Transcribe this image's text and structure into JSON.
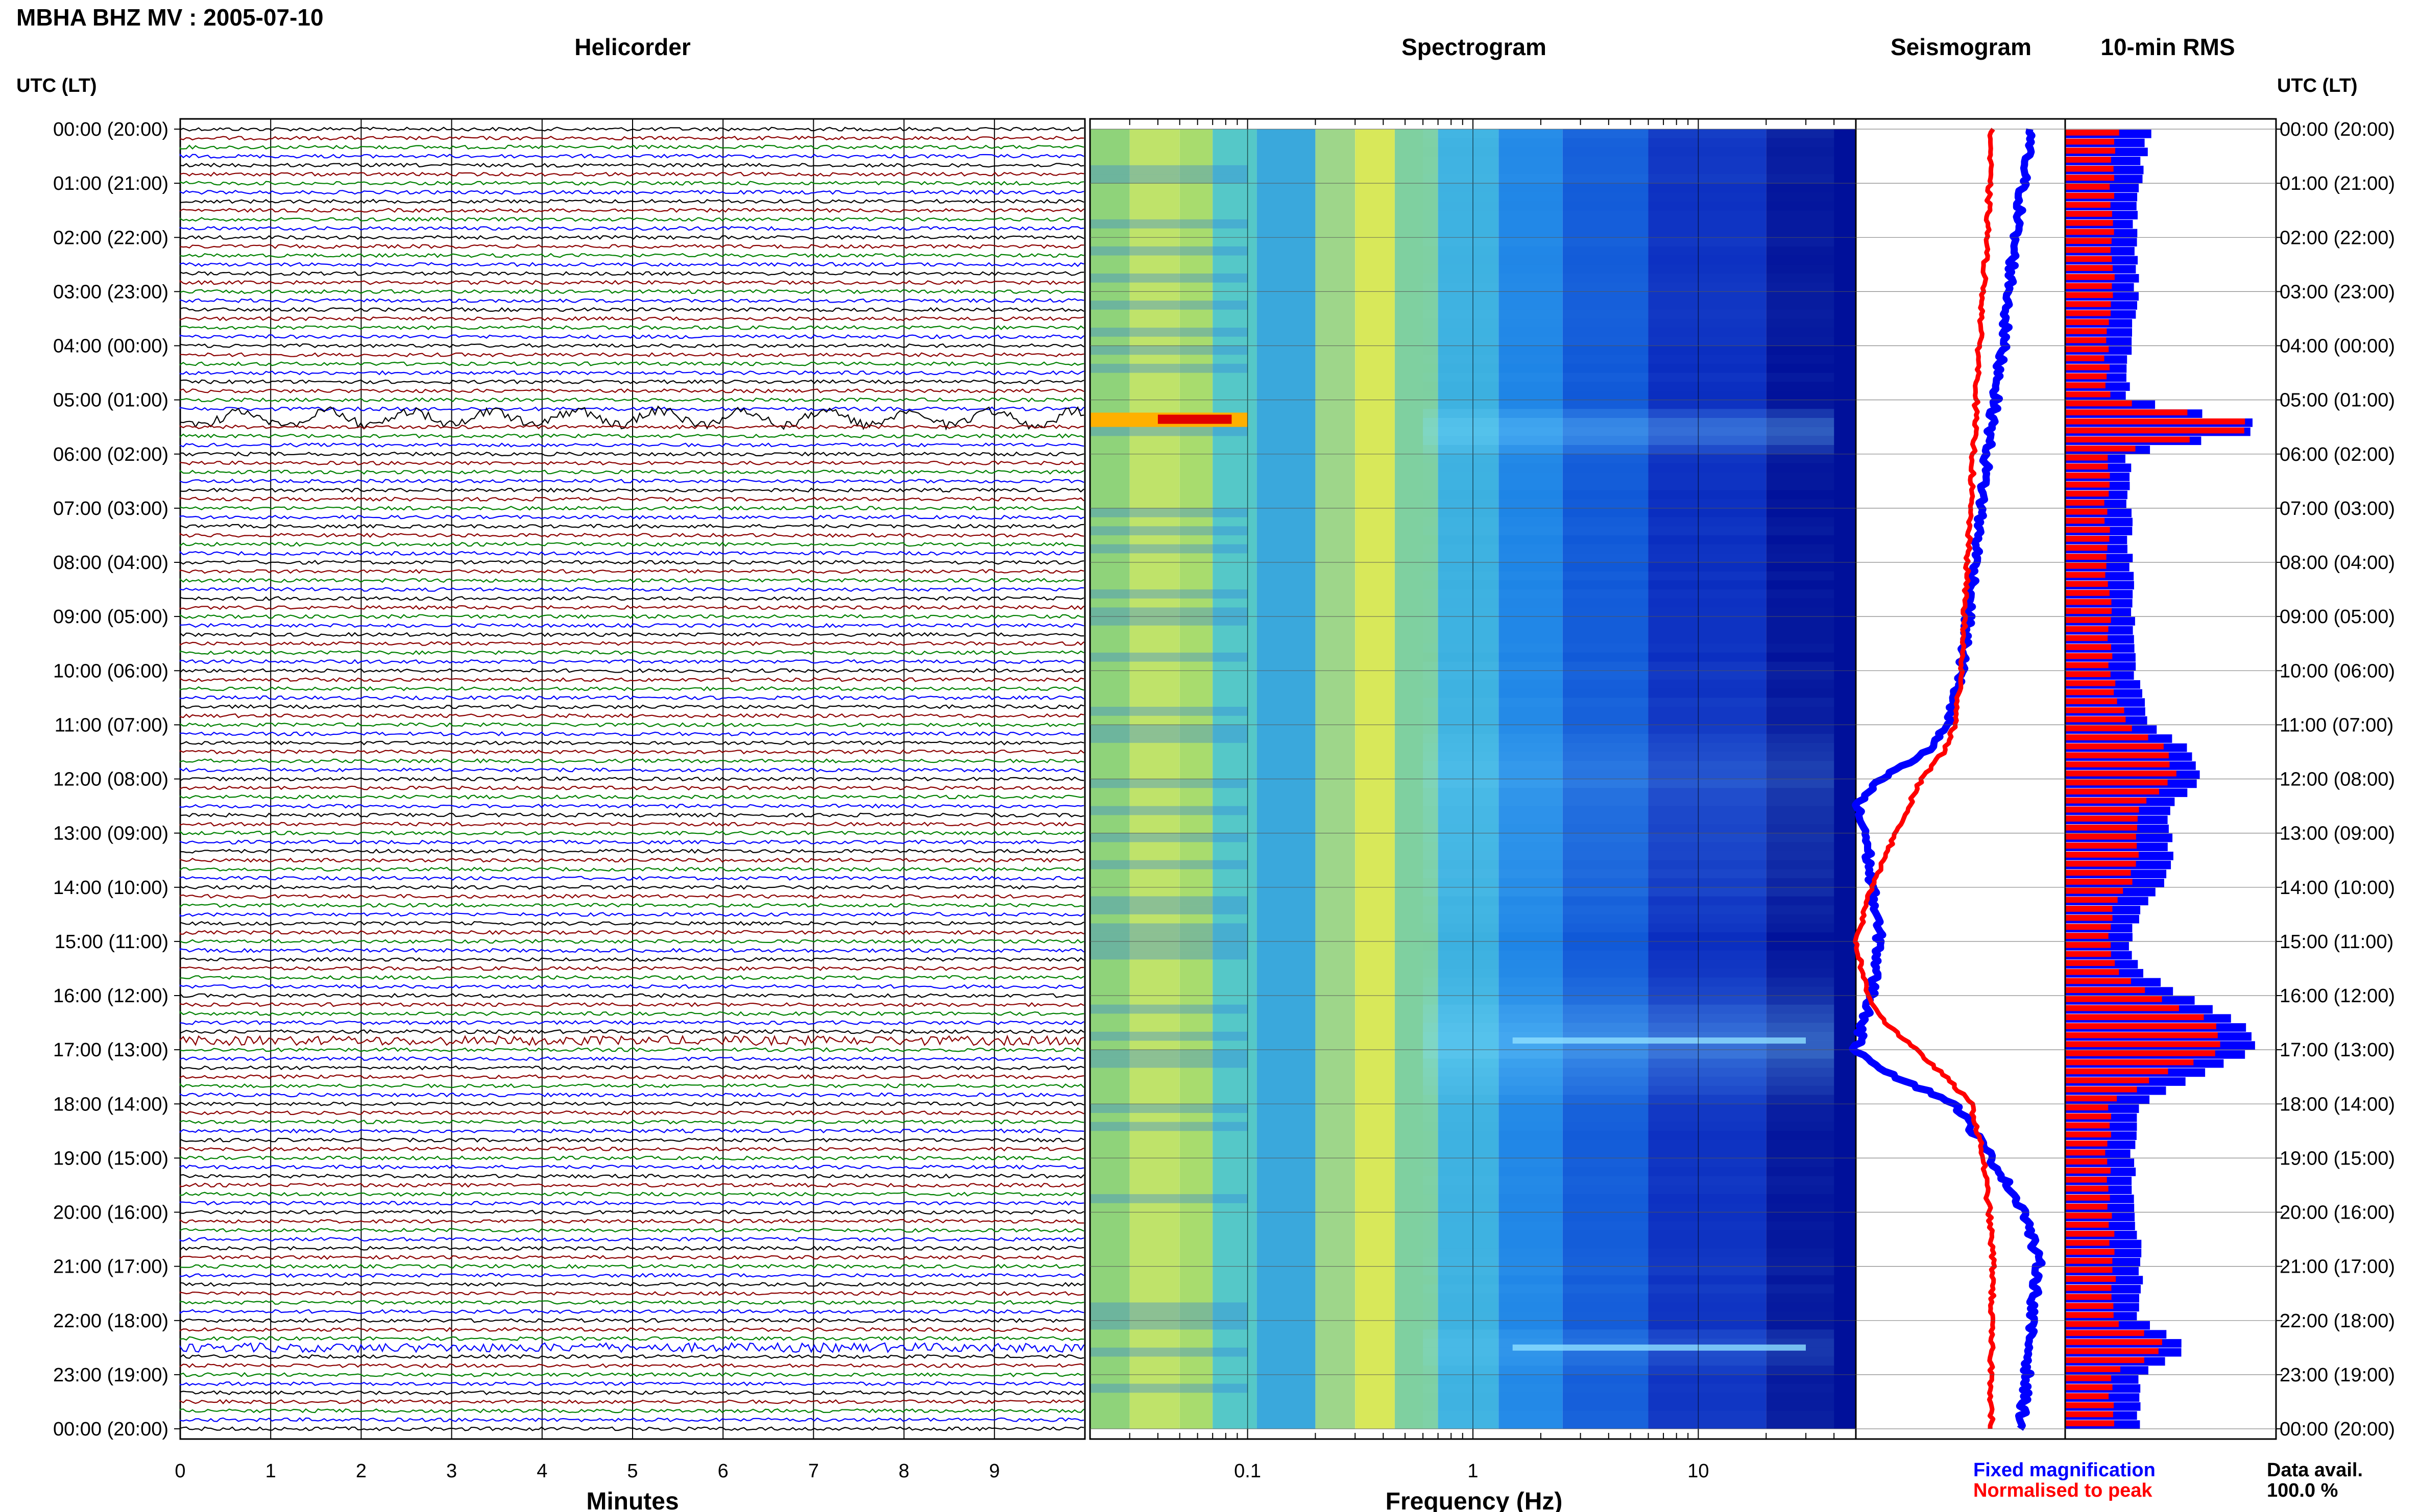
{
  "header": {
    "title": "MBHA BHZ MV : 2005-07-10"
  },
  "panels": {
    "helicorder": "Helicorder",
    "spectrogram": "Spectrogram",
    "seismogram": "Seismogram",
    "rms": "10-min RMS"
  },
  "time_axis": {
    "label": "UTC (LT)",
    "ticks": [
      "00:00 (20:00)",
      "01:00 (21:00)",
      "02:00 (22:00)",
      "03:00 (23:00)",
      "04:00 (00:00)",
      "05:00 (01:00)",
      "06:00 (02:00)",
      "07:00 (03:00)",
      "08:00 (04:00)",
      "09:00 (05:00)",
      "10:00 (06:00)",
      "11:00 (07:00)",
      "12:00 (08:00)",
      "13:00 (09:00)",
      "14:00 (10:00)",
      "15:00 (11:00)",
      "16:00 (12:00)",
      "17:00 (13:00)",
      "18:00 (14:00)",
      "19:00 (15:00)",
      "20:00 (16:00)",
      "21:00 (17:00)",
      "22:00 (18:00)",
      "23:00 (19:00)",
      "00:00 (20:00)"
    ]
  },
  "footer": {
    "fixed_label": "Fixed magnification",
    "normalised_label": "Normalised to peak",
    "avail_label": "Data avail.",
    "avail_value": "100.0 %"
  },
  "colors": {
    "trace_cycle": [
      "#000000",
      "#8b0000",
      "#008000",
      "#0000ff"
    ],
    "fixed": "#0000ff",
    "normalised": "#ff0000"
  },
  "chart_data": [
    {
      "type": "line",
      "name": "helicorder",
      "xlabel": "Minutes",
      "xlim": [
        0,
        10
      ],
      "x_ticks": [
        0,
        1,
        2,
        3,
        4,
        5,
        6,
        7,
        8,
        9
      ],
      "rows_per_hour": 6,
      "hours": 24,
      "notable_rows": [
        {
          "hour": 5.33,
          "feature": "teleseismic long-period wave train"
        },
        {
          "hour": 16.83,
          "feature": "large event"
        },
        {
          "hour": 22.5,
          "feature": "strong signal"
        }
      ]
    },
    {
      "type": "heatmap",
      "name": "spectrogram",
      "xlabel": "Frequency (Hz)",
      "x_scale": "log",
      "xlim": [
        0.02,
        50
      ],
      "x_ticks": [
        "0.1",
        "1",
        "10"
      ]
    },
    {
      "type": "line",
      "name": "seismogram",
      "series": [
        {
          "name": "Fixed magnification",
          "hours": [
            0,
            2,
            4,
            6,
            8,
            10,
            11,
            11.5,
            12,
            12.5,
            13,
            14,
            15,
            16,
            17,
            17.5,
            18,
            19,
            20,
            21,
            22,
            23,
            24
          ],
          "values": [
            0.88,
            0.8,
            0.74,
            0.66,
            0.6,
            0.53,
            0.46,
            0.35,
            0.12,
            0.0,
            0.05,
            0.08,
            0.12,
            0.08,
            0.0,
            0.2,
            0.5,
            0.68,
            0.85,
            0.92,
            0.88,
            0.86,
            0.83
          ]
        },
        {
          "name": "Normalised to peak",
          "hours": [
            0,
            2,
            4,
            6,
            8,
            10,
            11,
            11.5,
            12,
            13,
            14,
            15,
            16,
            16.5,
            17,
            17.5,
            18,
            19,
            20,
            21,
            22,
            23,
            24
          ],
          "values": [
            0.68,
            0.66,
            0.62,
            0.59,
            0.56,
            0.53,
            0.5,
            0.44,
            0.33,
            0.2,
            0.08,
            0.0,
            0.06,
            0.15,
            0.3,
            0.45,
            0.58,
            0.64,
            0.67,
            0.69,
            0.68,
            0.68,
            0.68
          ]
        }
      ]
    },
    {
      "type": "bar",
      "name": "10-min RMS",
      "series": [
        {
          "name": "Fixed magnification",
          "hours": [
            0,
            1,
            2,
            3,
            4,
            5,
            5.5,
            6,
            8,
            10,
            11,
            11.5,
            12,
            12.5,
            13,
            13.5,
            14,
            14.5,
            15,
            15.5,
            16,
            16.5,
            17,
            17.5,
            18,
            19,
            20,
            21,
            22,
            22.5,
            23,
            24
          ],
          "values": [
            0.4,
            0.35,
            0.33,
            0.34,
            0.31,
            0.3,
            1.0,
            0.3,
            0.31,
            0.33,
            0.4,
            0.6,
            0.65,
            0.5,
            0.5,
            0.5,
            0.45,
            0.35,
            0.3,
            0.35,
            0.55,
            0.85,
            0.9,
            0.6,
            0.35,
            0.32,
            0.33,
            0.36,
            0.35,
            0.6,
            0.35,
            0.34
          ]
        },
        {
          "name": "Normalised to peak",
          "hours": [
            0,
            1,
            2,
            3,
            4,
            5,
            5.5,
            6,
            8,
            10,
            11,
            11.5,
            12,
            12.5,
            13,
            13.5,
            14,
            14.5,
            15,
            15.5,
            16,
            16.5,
            17,
            17.5,
            18,
            19,
            20,
            21,
            22,
            22.5,
            23,
            24
          ],
          "values": [
            0.25,
            0.22,
            0.22,
            0.22,
            0.2,
            0.2,
            0.98,
            0.2,
            0.2,
            0.22,
            0.28,
            0.5,
            0.52,
            0.35,
            0.35,
            0.35,
            0.3,
            0.22,
            0.2,
            0.23,
            0.4,
            0.7,
            0.75,
            0.45,
            0.22,
            0.2,
            0.21,
            0.23,
            0.22,
            0.5,
            0.22,
            0.22
          ]
        }
      ]
    }
  ]
}
